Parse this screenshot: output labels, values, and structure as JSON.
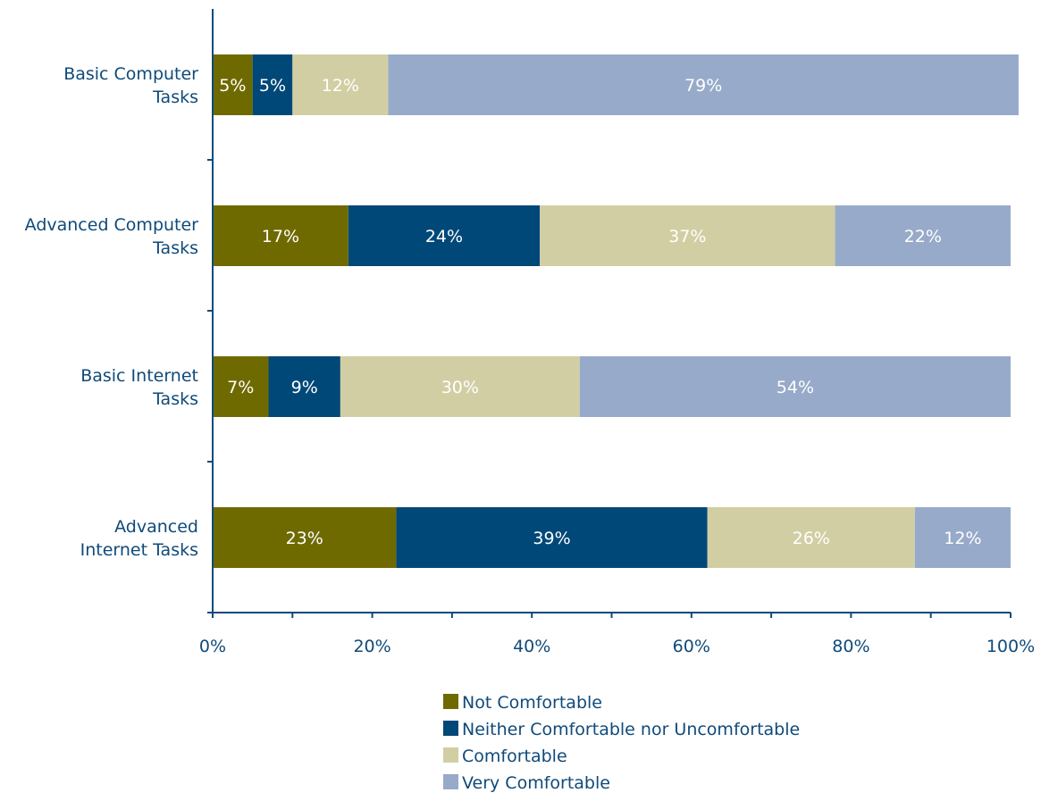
{
  "chart_data": {
    "type": "bar",
    "orientation": "horizontal",
    "stacked": true,
    "categories": [
      [
        "Basic Computer",
        "Tasks"
      ],
      [
        "Advanced Computer",
        "Tasks"
      ],
      [
        "Basic Internet",
        "Tasks"
      ],
      [
        "Advanced",
        "Internet Tasks"
      ]
    ],
    "series": [
      {
        "name": "Not Comfortable",
        "color": "#6f6a00",
        "label_color": "#ffffff",
        "values": [
          5,
          17,
          7,
          23
        ]
      },
      {
        "name": "Neither Comfortable nor Uncomfortable",
        "color": "#004878",
        "label_color": "#ffffff",
        "values": [
          5,
          24,
          9,
          39
        ]
      },
      {
        "name": "Comfortable",
        "color": "#d2cea4",
        "label_color": "#ffffff",
        "values": [
          12,
          37,
          30,
          26
        ]
      },
      {
        "name": "Very Comfortable",
        "color": "#97aac9",
        "label_color": "#ffffff",
        "values": [
          79,
          22,
          54,
          12
        ]
      }
    ],
    "xlim": [
      0,
      100
    ],
    "xticks": [
      "0%",
      "20%",
      "40%",
      "60%",
      "80%",
      "100%"
    ],
    "xtick_values": [
      0,
      20,
      40,
      60,
      80,
      100
    ],
    "value_suffix": "%",
    "axis_color": "#0f4a7a",
    "grid": false,
    "legend_position": "bottom"
  }
}
